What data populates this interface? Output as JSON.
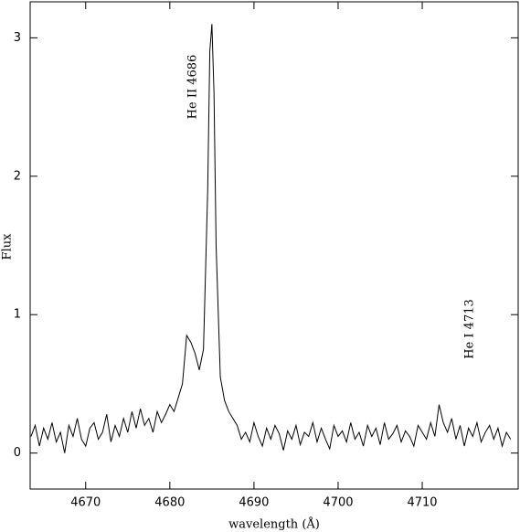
{
  "chart_data": {
    "type": "line",
    "x_label": "wavelength (Å)",
    "y_label": "Flux",
    "annotations": [
      "He II 4686",
      "He I 4713"
    ],
    "xlim": [
      4663.4,
      4721.4
    ],
    "ylim": [
      -0.26,
      3.26
    ],
    "xticks": [
      4670,
      4680,
      4690,
      4700,
      4710
    ],
    "yticks": [
      0,
      1,
      2,
      3
    ],
    "color": "#000000",
    "x": [
      4663.5,
      4664,
      4664.5,
      4665,
      4665.5,
      4666,
      4666.5,
      4667,
      4667.5,
      4668,
      4668.5,
      4669,
      4669.5,
      4670,
      4670.5,
      4671,
      4671.5,
      4672,
      4672.5,
      4673,
      4673.5,
      4674,
      4674.5,
      4675,
      4675.5,
      4676,
      4676.5,
      4677,
      4677.5,
      4678,
      4678.5,
      4679,
      4679.5,
      4680,
      4680.5,
      4681,
      4681.5,
      4682,
      4682.5,
      4683,
      4683.5,
      4684,
      4684.5,
      4684.75,
      4685,
      4685.25,
      4685.5,
      4686,
      4686.5,
      4687,
      4687.5,
      4688,
      4688.5,
      4689,
      4689.5,
      4690,
      4690.5,
      4691,
      4691.5,
      4692,
      4692.5,
      4693,
      4693.5,
      4694,
      4694.5,
      4695,
      4695.5,
      4696,
      4696.5,
      4697,
      4697.5,
      4698,
      4698.5,
      4699,
      4699.5,
      4700,
      4700.5,
      4701,
      4701.5,
      4702,
      4702.5,
      4703,
      4703.5,
      4704,
      4704.5,
      4705,
      4705.5,
      4706,
      4706.5,
      4707,
      4707.5,
      4708,
      4708.5,
      4709,
      4709.5,
      4710,
      4710.5,
      4711,
      4711.5,
      4712,
      4712.5,
      4713,
      4713.5,
      4714,
      4714.5,
      4715,
      4715.5,
      4716,
      4716.5,
      4717,
      4717.5,
      4718,
      4718.5,
      4719,
      4719.5,
      4720,
      4720.5
    ],
    "values": [
      0.12,
      0.2,
      0.05,
      0.18,
      0.1,
      0.22,
      0.08,
      0.15,
      0.0,
      0.2,
      0.12,
      0.25,
      0.1,
      0.05,
      0.18,
      0.22,
      0.1,
      0.15,
      0.28,
      0.08,
      0.2,
      0.12,
      0.25,
      0.15,
      0.3,
      0.18,
      0.32,
      0.2,
      0.25,
      0.15,
      0.3,
      0.22,
      0.28,
      0.35,
      0.3,
      0.4,
      0.5,
      0.85,
      0.8,
      0.72,
      0.6,
      0.75,
      1.9,
      2.9,
      3.1,
      2.6,
      1.5,
      0.55,
      0.38,
      0.3,
      0.25,
      0.2,
      0.1,
      0.15,
      0.08,
      0.22,
      0.12,
      0.05,
      0.18,
      0.1,
      0.2,
      0.14,
      0.02,
      0.16,
      0.1,
      0.2,
      0.06,
      0.15,
      0.12,
      0.22,
      0.08,
      0.18,
      0.1,
      0.03,
      0.2,
      0.12,
      0.16,
      0.08,
      0.22,
      0.1,
      0.15,
      0.05,
      0.2,
      0.12,
      0.18,
      0.06,
      0.22,
      0.1,
      0.14,
      0.2,
      0.08,
      0.16,
      0.12,
      0.05,
      0.2,
      0.15,
      0.1,
      0.22,
      0.12,
      0.35,
      0.22,
      0.15,
      0.25,
      0.1,
      0.2,
      0.05,
      0.18,
      0.12,
      0.22,
      0.08,
      0.15,
      0.2,
      0.1,
      0.18,
      0.05,
      0.15,
      0.1
    ]
  }
}
